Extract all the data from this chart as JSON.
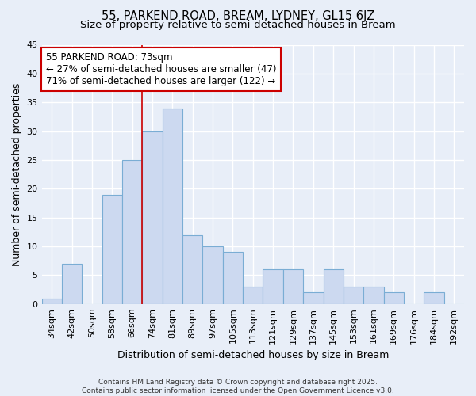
{
  "title": "55, PARKEND ROAD, BREAM, LYDNEY, GL15 6JZ",
  "subtitle": "Size of property relative to semi-detached houses in Bream",
  "xlabel": "Distribution of semi-detached houses by size in Bream",
  "ylabel": "Number of semi-detached properties",
  "categories": [
    "34sqm",
    "42sqm",
    "50sqm",
    "58sqm",
    "66sqm",
    "74sqm",
    "81sqm",
    "89sqm",
    "97sqm",
    "105sqm",
    "113sqm",
    "121sqm",
    "129sqm",
    "137sqm",
    "145sqm",
    "153sqm",
    "161sqm",
    "169sqm",
    "176sqm",
    "184sqm",
    "192sqm"
  ],
  "values": [
    1,
    7,
    0,
    19,
    25,
    30,
    34,
    12,
    10,
    9,
    3,
    6,
    6,
    2,
    6,
    3,
    3,
    2,
    0,
    2,
    0
  ],
  "bar_color": "#ccd9f0",
  "bar_edge_color": "#7aadd4",
  "vline_x": 4.5,
  "vline_color": "#cc0000",
  "annotation_text": "55 PARKEND ROAD: 73sqm\n← 27% of semi-detached houses are smaller (47)\n71% of semi-detached houses are larger (122) →",
  "annotation_box_color": "#ffffff",
  "annotation_box_edge": "#cc0000",
  "ylim": [
    0,
    45
  ],
  "yticks": [
    0,
    5,
    10,
    15,
    20,
    25,
    30,
    35,
    40,
    45
  ],
  "footer_text": "Contains HM Land Registry data © Crown copyright and database right 2025.\nContains public sector information licensed under the Open Government Licence v3.0.",
  "bg_color": "#e8eef8",
  "grid_color": "#ffffff",
  "title_fontsize": 10.5,
  "subtitle_fontsize": 9.5,
  "xlabel_fontsize": 9,
  "ylabel_fontsize": 9,
  "tick_fontsize": 8,
  "annotation_fontsize": 8.5,
  "footer_fontsize": 6.5
}
